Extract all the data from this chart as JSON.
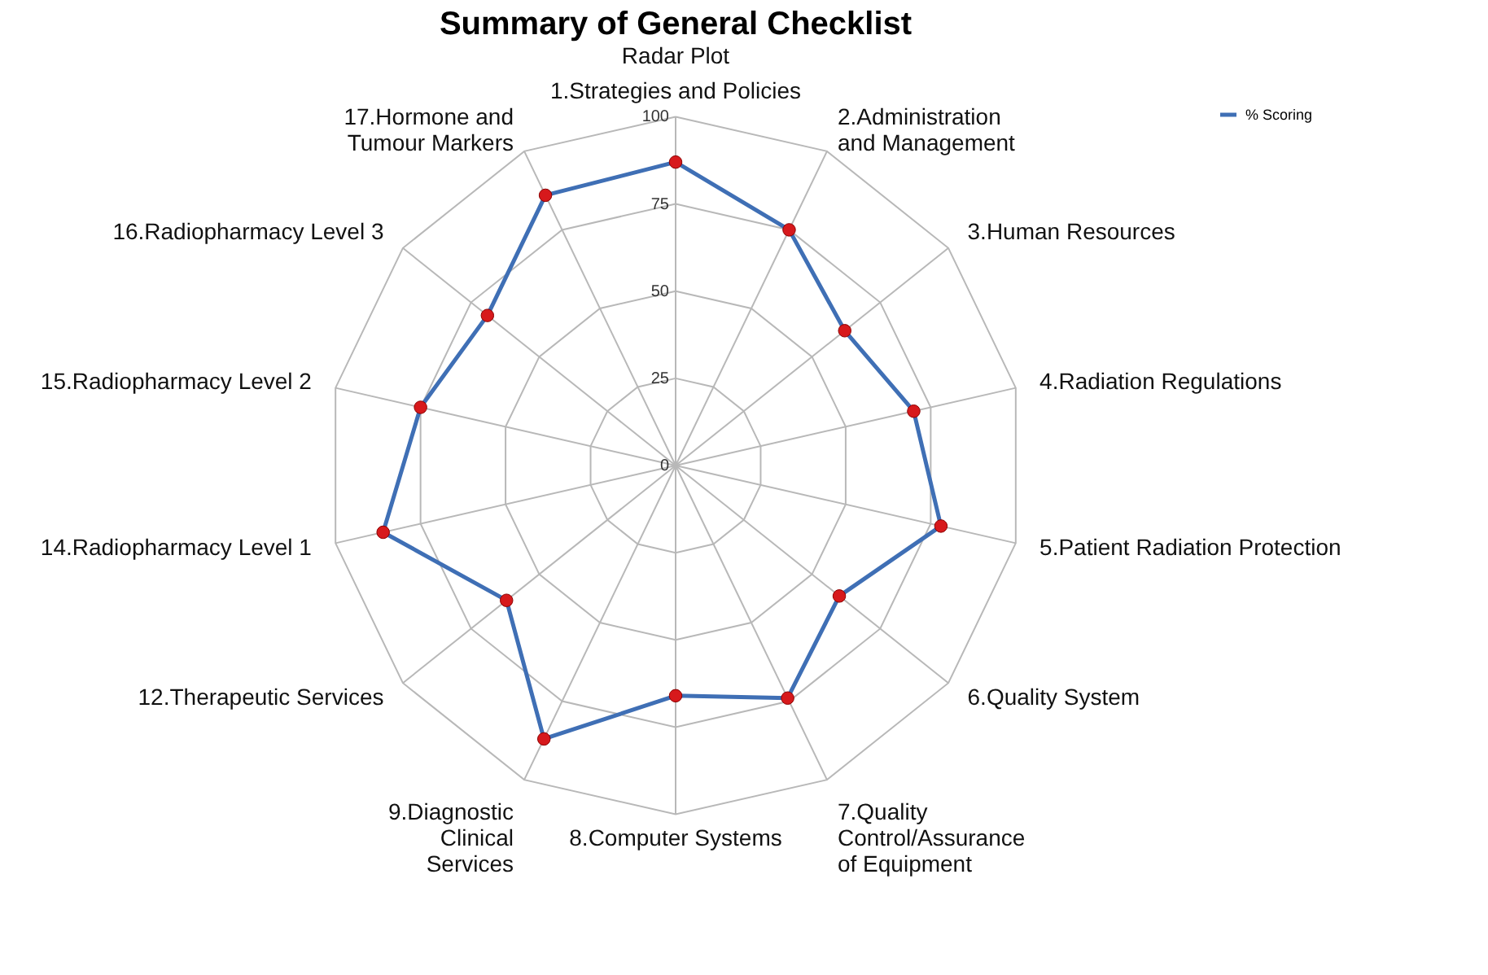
{
  "chart_data": {
    "type": "radar",
    "title": "Summary of General Checklist",
    "subtitle": "Radar Plot",
    "categories": [
      "1.Strategies and Policies",
      "2.Administration and Management",
      "3.Human Resources",
      "4.Radiation Regulations",
      "5.Patient Radiation Protection",
      "6.Quality System",
      "7.Quality Control/Assurance of Equipment",
      "8.Computer Systems",
      "9.Diagnostic Clinical Services",
      "12.Therapeutic Services",
      "14.Radiopharmacy Level 1",
      "15.Radiopharmacy Level 2",
      "16.Radiopharmacy Level 3",
      "17.Hormone and Tumour Markers"
    ],
    "series": [
      {
        "name": "% Scoring",
        "color": "#3f6fb5",
        "colors": [
          "#d7191c",
          "#d7191c",
          "#d7191c",
          "#d7191c",
          "#d7191c",
          "#d7191c",
          "#d7191c",
          "#d7191c",
          "#d7191c",
          "#d7191c",
          "#d7191c",
          "#d7191c",
          "#d7191c",
          "#d7191c"
        ],
        "values": [
          87,
          75,
          62,
          70,
          78,
          60,
          74,
          66,
          87,
          62,
          86,
          75,
          69,
          86
        ]
      }
    ],
    "ylim": [
      0,
      100
    ],
    "yticks": [
      0,
      25,
      50,
      75,
      100
    ],
    "grid": true,
    "marker": "circle",
    "line_style": "solid",
    "legend": "top right"
  }
}
